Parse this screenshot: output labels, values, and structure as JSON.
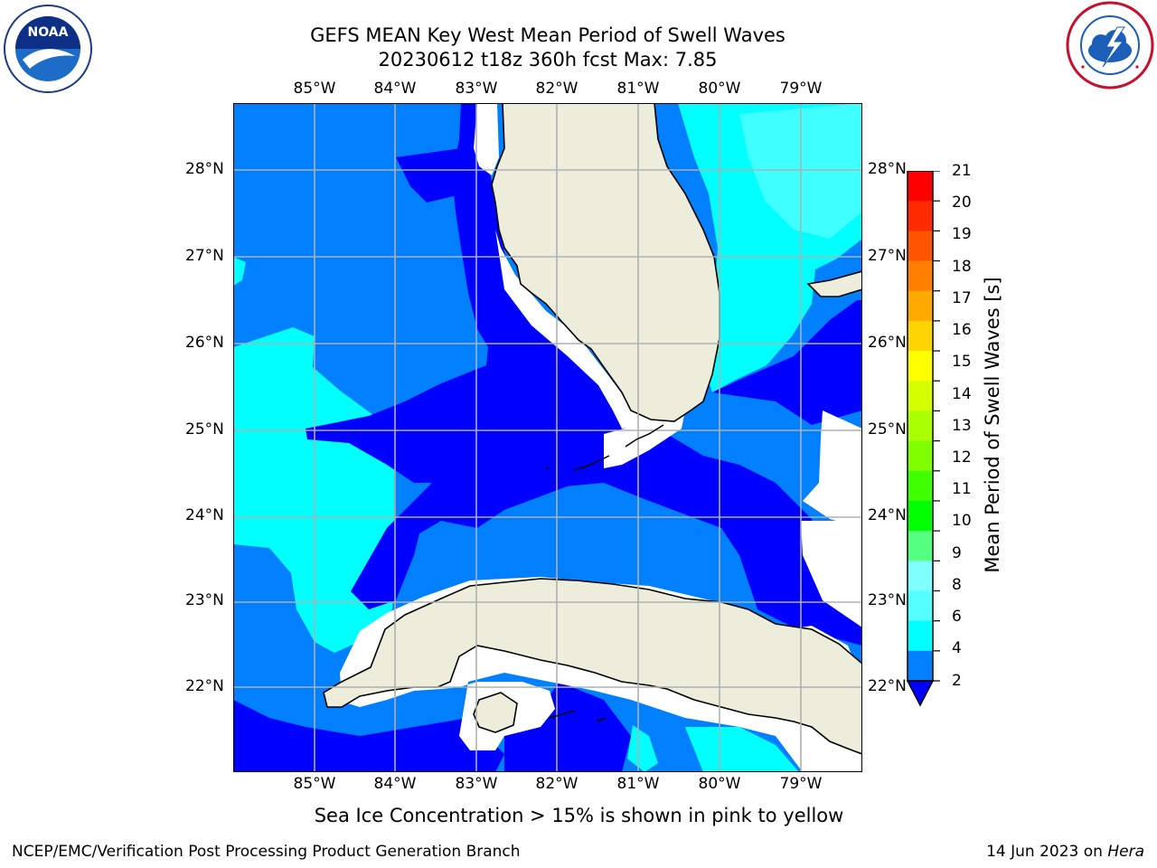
{
  "title": {
    "line1": "GEFS MEAN Key West Mean Period of Swell Waves",
    "line2": "20230612 t18z 360h fcst   Max: 7.85"
  },
  "logos": {
    "left": "noaa-logo",
    "left_text": "NOAA",
    "right": "national-weather-service-logo"
  },
  "map": {
    "longitude_labels": [
      "85°W",
      "84°W",
      "83°W",
      "82°W",
      "81°W",
      "80°W",
      "79°W"
    ],
    "latitude_labels": [
      "28°N",
      "27°N",
      "26°N",
      "25°N",
      "24°N",
      "23°N",
      "22°N"
    ],
    "colors": {
      "land": "#EDEDDC",
      "ocean_2_4": "#0000FF",
      "ocean_4_5": "#0080FF",
      "ocean_5_6": "#00FFFF",
      "ocean_6_7": "#40FFFF",
      "no_data": "#FFFFFF",
      "grid": "#B0B0B0"
    }
  },
  "colorbar": {
    "title": "Mean Period of Swell Waves [s]",
    "ticks": [
      "21",
      "20",
      "19",
      "18",
      "17",
      "16",
      "15",
      "14",
      "13",
      "12",
      "11",
      "10",
      "9",
      "8",
      "6",
      "4",
      "2"
    ],
    "bands": [
      "#FF0000",
      "#FF2A00",
      "#FF5500",
      "#FF8000",
      "#FFAA00",
      "#FFD400",
      "#FFFF00",
      "#D4FF00",
      "#AAFF00",
      "#80FF00",
      "#40FF00",
      "#00FF00",
      "#55FF80",
      "#80FFFF",
      "#55FFFF",
      "#00FFFF",
      "#0080FF"
    ],
    "extend_color": "#0000FF"
  },
  "note": "Sea Ice Concentration > 15% is shown in pink to yellow",
  "footer": {
    "left": "NCEP/EMC/Verification Post Processing Product Generation Branch",
    "right_date": "14 Jun 2023 on ",
    "right_host": "Hera"
  }
}
